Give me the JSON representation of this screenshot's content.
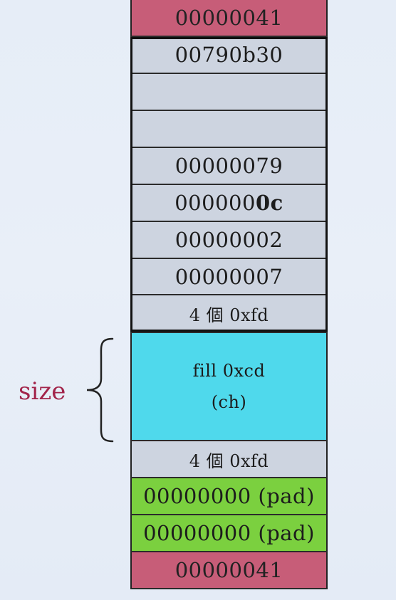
{
  "diagram": {
    "size_label": "size",
    "blocks": [
      {
        "id": "top-guard",
        "text": "00000041",
        "color": "pink"
      },
      {
        "id": "next-ptr",
        "text": "00790b30",
        "color": "gray"
      },
      {
        "id": "blank-1",
        "text": "",
        "color": "gray"
      },
      {
        "id": "blank-2",
        "text": "",
        "color": "gray"
      },
      {
        "id": "line-number",
        "text": "00000079",
        "color": "gray"
      },
      {
        "id": "data-size",
        "text_prefix": "000000",
        "text_bold": "0c",
        "color": "gray"
      },
      {
        "id": "block-type",
        "text": "00000002",
        "color": "gray"
      },
      {
        "id": "request-id",
        "text": "00000007",
        "color": "gray"
      },
      {
        "id": "no-mans-land-before",
        "text": "4 個 0xfd",
        "color": "gray"
      },
      {
        "id": "user-data",
        "line1": "fill  0xcd",
        "line2": "(ch)",
        "color": "cyan"
      },
      {
        "id": "no-mans-land-after",
        "text": "4 個 0xfd",
        "color": "gray"
      },
      {
        "id": "pad-1",
        "text": "00000000 (pad)",
        "color": "green"
      },
      {
        "id": "pad-2",
        "text": "00000000 (pad)",
        "color": "green"
      },
      {
        "id": "bottom-guard",
        "text": "00000041",
        "color": "pink"
      }
    ],
    "colors": {
      "pink": "#c75d78",
      "gray": "#cdd4e0",
      "cyan": "#4fd9ec",
      "green": "#7bd03f",
      "size_label": "#a2244a"
    }
  }
}
